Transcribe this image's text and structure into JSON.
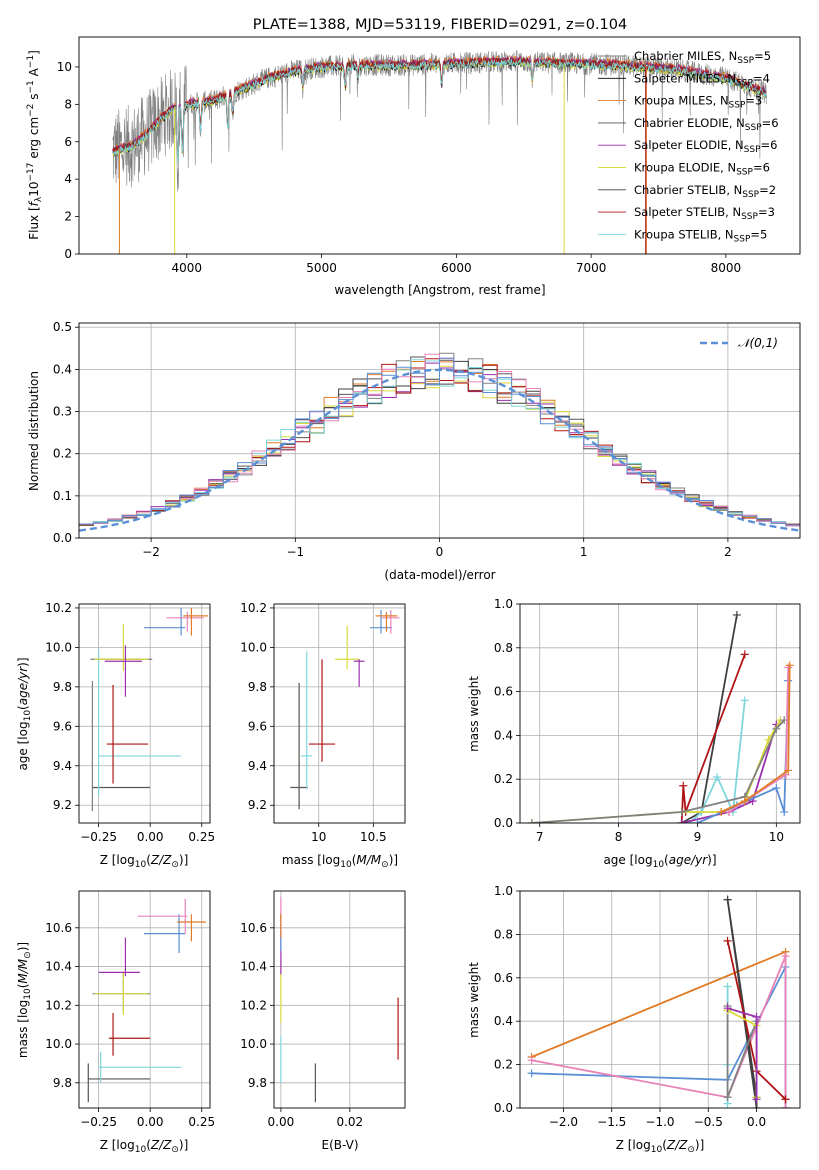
{
  "chart_data": [
    {
      "type": "line",
      "title": "PLATE=1388, MJD=53119, FIBERID=0291, z=0.104",
      "xlabel": "wavelength [Angstrom, rest frame]",
      "ylabel": "Flux [fλ10⁻¹⁷ erg cm⁻² s⁻¹ A⁻¹]",
      "xlim": [
        3200,
        8550
      ],
      "ylim": [
        0,
        11.6
      ],
      "xticks": [
        4000,
        5000,
        6000,
        7000,
        8000
      ],
      "yticks": [
        0,
        2,
        4,
        6,
        8,
        10
      ],
      "legend_position": "right",
      "series": [
        {
          "name": "Chabrier MILES, N_SSP=5",
          "color": "#808080"
        },
        {
          "name": "Salpeter MILES, N_SSP=4",
          "color": "#000000"
        },
        {
          "name": "Kroupa MILES, N_SSP=3",
          "color": "#e07b26"
        },
        {
          "name": "Chabrier ELODIE, N_SSP=6",
          "color": "#555555"
        },
        {
          "name": "Salpeter ELODIE, N_SSP=6",
          "color": "#9b2fae"
        },
        {
          "name": "Kroupa ELODIE, N_SSP=6",
          "color": "#d9d93a"
        },
        {
          "name": "Chabrier STELIB, N_SSP=2",
          "color": "#404040"
        },
        {
          "name": "Salpeter STELIB, N_SSP=3",
          "color": "#b01515"
        },
        {
          "name": "Kroupa STELIB, N_SSP=5",
          "color": "#7ed6dc"
        }
      ],
      "continuum": {
        "x": [
          3450,
          3600,
          3700,
          3800,
          3900,
          4000,
          4200,
          4400,
          4600,
          4800,
          5000,
          5300,
          5600,
          6000,
          6400,
          6800,
          7200,
          7600,
          8000,
          8300
        ],
        "y": [
          5.5,
          5.8,
          6.4,
          7.2,
          7.8,
          8.0,
          8.2,
          8.8,
          9.4,
          9.8,
          10.0,
          10.1,
          10.1,
          10.2,
          10.3,
          10.2,
          10.1,
          9.9,
          9.4,
          8.6
        ]
      }
    },
    {
      "type": "step",
      "xlabel": "(data-model)/error",
      "ylabel": "Normed distribution",
      "xlim": [
        -2.5,
        2.5
      ],
      "ylim": [
        0,
        0.51
      ],
      "xticks": [
        -2,
        -1,
        0,
        1,
        2
      ],
      "yticks": [
        0.0,
        0.1,
        0.2,
        0.3,
        0.4,
        0.5
      ],
      "legend_label": "𝒩(0,1)",
      "gaussian": {
        "mu": 0,
        "sigma": 1,
        "color": "#5b8fd6"
      },
      "bin_width": 0.1,
      "colors": [
        "#808080",
        "#e07b26",
        "#555555",
        "#9b2fae",
        "#d9d93a",
        "#404040",
        "#b01515",
        "#7ed6dc",
        "#e882b8",
        "#5b8fd6"
      ]
    },
    {
      "type": "errorbar",
      "xlabel": "Z [log₁₀(Z/Z⊙)]",
      "ylabel": "age  [log₁₀(age/yr)]",
      "xlim": [
        -0.345,
        0.29
      ],
      "ylim": [
        9.11,
        10.22
      ],
      "xticks": [
        -0.25,
        0.0,
        0.25
      ],
      "xticklabels": [
        "−0.25",
        "0.00",
        "0.25"
      ],
      "yticks": [
        9.2,
        9.4,
        9.6,
        9.8,
        10.0,
        10.2
      ],
      "points": [
        {
          "x": -0.28,
          "xerr": 0.0,
          "y": 9.5,
          "yerr": 0.33,
          "color": "#808080"
        },
        {
          "x": -0.14,
          "xerr": 0.14,
          "y": 9.29,
          "yerr": 0.0,
          "color": "#555555"
        },
        {
          "x": -0.28,
          "xerr": 0.0,
          "y": 9.45,
          "yerr": 0.0,
          "color": "#555555"
        },
        {
          "x": -0.25,
          "xerr": 0.0,
          "y": 9.62,
          "yerr": 0.37,
          "color": "#7ed6dc"
        },
        {
          "x": -0.05,
          "xerr": 0.2,
          "y": 9.45,
          "yerr": 0.0,
          "color": "#7ed6dc"
        },
        {
          "x": -0.18,
          "xerr": 0.0,
          "y": 9.56,
          "yerr": 0.25,
          "color": "#b01515"
        },
        {
          "x": -0.11,
          "xerr": 0.1,
          "y": 9.51,
          "yerr": 0.0,
          "color": "#b01515"
        },
        {
          "x": -0.14,
          "xerr": 0.15,
          "y": 9.94,
          "yerr": 0.0,
          "color": "#808080"
        },
        {
          "x": -0.13,
          "xerr": 0.0,
          "y": 10.0,
          "yerr": 0.12,
          "color": "#d9d93a"
        },
        {
          "x": -0.14,
          "xerr": 0.13,
          "y": 9.94,
          "yerr": 0.0,
          "color": "#d9d93a"
        },
        {
          "x": -0.12,
          "xerr": 0.0,
          "y": 9.88,
          "yerr": 0.13,
          "color": "#9b2fae"
        },
        {
          "x": -0.13,
          "xerr": 0.09,
          "y": 9.93,
          "yerr": 0.0,
          "color": "#9b2fae"
        },
        {
          "x": 0.15,
          "xerr": 0.0,
          "y": 10.13,
          "yerr": 0.07,
          "color": "#5b8fd6"
        },
        {
          "x": 0.07,
          "xerr": 0.1,
          "y": 10.1,
          "yerr": 0.0,
          "color": "#5b8fd6"
        },
        {
          "x": 0.18,
          "xerr": 0.0,
          "y": 10.13,
          "yerr": 0.05,
          "color": "#e882b8"
        },
        {
          "x": 0.17,
          "xerr": 0.09,
          "y": 10.15,
          "yerr": 0.0,
          "color": "#e882b8"
        },
        {
          "x": 0.2,
          "xerr": 0.0,
          "y": 10.13,
          "yerr": 0.07,
          "color": "#e07b26"
        },
        {
          "x": 0.22,
          "xerr": 0.06,
          "y": 10.16,
          "yerr": 0.0,
          "color": "#e07b26"
        }
      ]
    },
    {
      "type": "errorbar",
      "xlabel": "mass [log₁₀(M/M⊙)]",
      "xlim": [
        9.59,
        10.79
      ],
      "ylim": [
        9.11,
        10.22
      ],
      "xticks": [
        10.0,
        10.5
      ],
      "yticks": [
        9.2,
        9.4,
        9.6,
        9.8,
        10.0,
        10.2
      ],
      "points": [
        {
          "x": 9.82,
          "xerr": 0.0,
          "y": 9.5,
          "yerr": 0.32,
          "color": "#555555"
        },
        {
          "x": 9.82,
          "xerr": 0.08,
          "y": 9.29,
          "yerr": 0.0,
          "color": "#555555"
        },
        {
          "x": 9.89,
          "xerr": 0.0,
          "y": 9.63,
          "yerr": 0.35,
          "color": "#7ed6dc"
        },
        {
          "x": 9.89,
          "xerr": 0.05,
          "y": 9.45,
          "yerr": 0.0,
          "color": "#7ed6dc"
        },
        {
          "x": 10.03,
          "xerr": 0.0,
          "y": 9.68,
          "yerr": 0.26,
          "color": "#b01515"
        },
        {
          "x": 10.03,
          "xerr": 0.12,
          "y": 9.51,
          "yerr": 0.0,
          "color": "#b01515"
        },
        {
          "x": 10.26,
          "xerr": 0.0,
          "y": 10.0,
          "yerr": 0.11,
          "color": "#d9d93a"
        },
        {
          "x": 10.26,
          "xerr": 0.11,
          "y": 9.94,
          "yerr": 0.0,
          "color": "#d9d93a"
        },
        {
          "x": 10.37,
          "xerr": 0.0,
          "y": 9.87,
          "yerr": 0.07,
          "color": "#9b2fae"
        },
        {
          "x": 10.37,
          "xerr": 0.05,
          "y": 9.93,
          "yerr": 0.0,
          "color": "#9b2fae"
        },
        {
          "x": 10.57,
          "xerr": 0.0,
          "y": 10.13,
          "yerr": 0.06,
          "color": "#5b8fd6"
        },
        {
          "x": 10.57,
          "xerr": 0.1,
          "y": 10.1,
          "yerr": 0.0,
          "color": "#5b8fd6"
        },
        {
          "x": 10.66,
          "xerr": 0.0,
          "y": 10.13,
          "yerr": 0.06,
          "color": "#e882b8"
        },
        {
          "x": 10.66,
          "xerr": 0.08,
          "y": 10.15,
          "yerr": 0.0,
          "color": "#e882b8"
        },
        {
          "x": 10.62,
          "xerr": 0.0,
          "y": 10.13,
          "yerr": 0.05,
          "color": "#e07b26"
        },
        {
          "x": 10.62,
          "xerr": 0.1,
          "y": 10.16,
          "yerr": 0.0,
          "color": "#e07b26"
        }
      ]
    },
    {
      "type": "line",
      "xlabel": "age  [log₁₀(age/yr)]",
      "ylabel": "mass weight",
      "xlim": [
        6.75,
        10.3
      ],
      "ylim": [
        0,
        1.0
      ],
      "xticks": [
        7,
        8,
        9,
        10
      ],
      "yticks": [
        0.0,
        0.2,
        0.4,
        0.6,
        0.8,
        1.0
      ],
      "series": [
        {
          "color": "#404040",
          "x": [
            8.8,
            9.05,
            9.5
          ],
          "y": [
            0.0,
            0.05,
            0.95
          ]
        },
        {
          "color": "#b01515",
          "x": [
            8.8,
            8.82,
            8.85,
            9.6
          ],
          "y": [
            0.0,
            0.17,
            0.05,
            0.77
          ]
        },
        {
          "color": "#7ed6dc",
          "x": [
            8.9,
            9.05,
            9.25,
            9.45,
            9.6
          ],
          "y": [
            0.0,
            0.05,
            0.21,
            0.05,
            0.56
          ]
        },
        {
          "color": "#9b2fae",
          "x": [
            8.8,
            9.4,
            9.7,
            10.0
          ],
          "y": [
            0.0,
            0.05,
            0.1,
            0.45
          ]
        },
        {
          "color": "#d9d93a",
          "x": [
            6.9,
            8.8,
            9.3,
            9.6,
            9.9,
            10.05
          ],
          "y": [
            0.0,
            0.05,
            0.05,
            0.1,
            0.38,
            0.47
          ]
        },
        {
          "color": "#808080",
          "x": [
            6.9,
            8.8,
            9.6,
            10.0,
            10.1
          ],
          "y": [
            0.0,
            0.05,
            0.12,
            0.43,
            0.47
          ]
        },
        {
          "color": "#5b8fd6",
          "x": [
            9.0,
            9.5,
            10.0,
            10.1,
            10.15
          ],
          "y": [
            0.0,
            0.08,
            0.16,
            0.05,
            0.65
          ]
        },
        {
          "color": "#e882b8",
          "x": [
            9.4,
            9.6,
            10.12,
            10.15
          ],
          "y": [
            0.05,
            0.1,
            0.22,
            0.71
          ]
        },
        {
          "color": "#e07b26",
          "x": [
            9.3,
            9.6,
            10.15,
            10.17
          ],
          "y": [
            0.05,
            0.1,
            0.24,
            0.72
          ]
        }
      ]
    },
    {
      "type": "errorbar",
      "xlabel": "Z [log₁₀(Z/Z⊙)]",
      "ylabel": "mass [log₁₀(M/M⊙)]",
      "xlim": [
        -0.345,
        0.29
      ],
      "ylim": [
        9.67,
        10.79
      ],
      "xticks": [
        -0.25,
        0.0,
        0.25
      ],
      "xticklabels": [
        "−0.25",
        "0.00",
        "0.25"
      ],
      "yticks": [
        9.8,
        10.0,
        10.2,
        10.4,
        10.6
      ],
      "points": [
        {
          "x": -0.3,
          "xerr": 0.0,
          "y": 9.8,
          "yerr": 0.1,
          "color": "#555555"
        },
        {
          "x": -0.15,
          "xerr": 0.15,
          "y": 9.82,
          "yerr": 0.0,
          "color": "#555555"
        },
        {
          "x": -0.24,
          "xerr": 0.0,
          "y": 9.88,
          "yerr": 0.08,
          "color": "#7ed6dc"
        },
        {
          "x": -0.05,
          "xerr": 0.2,
          "y": 9.88,
          "yerr": 0.0,
          "color": "#7ed6dc"
        },
        {
          "x": -0.18,
          "xerr": 0.0,
          "y": 10.05,
          "yerr": 0.11,
          "color": "#b01515"
        },
        {
          "x": -0.1,
          "xerr": 0.1,
          "y": 10.03,
          "yerr": 0.0,
          "color": "#b01515"
        },
        {
          "x": -0.13,
          "xerr": 0.0,
          "y": 10.27,
          "yerr": 0.1,
          "color": "#808080"
        },
        {
          "x": -0.14,
          "xerr": 0.14,
          "y": 10.26,
          "yerr": 0.0,
          "color": "#808080"
        },
        {
          "x": -0.13,
          "xerr": 0.0,
          "y": 10.26,
          "yerr": 0.11,
          "color": "#d9d93a"
        },
        {
          "x": -0.14,
          "xerr": 0.13,
          "y": 10.26,
          "yerr": 0.0,
          "color": "#d9d93a"
        },
        {
          "x": -0.12,
          "xerr": 0.0,
          "y": 10.45,
          "yerr": 0.1,
          "color": "#9b2fae"
        },
        {
          "x": -0.15,
          "xerr": 0.1,
          "y": 10.37,
          "yerr": 0.0,
          "color": "#9b2fae"
        },
        {
          "x": 0.14,
          "xerr": 0.0,
          "y": 10.57,
          "yerr": 0.1,
          "color": "#5b8fd6"
        },
        {
          "x": 0.07,
          "xerr": 0.1,
          "y": 10.57,
          "yerr": 0.0,
          "color": "#5b8fd6"
        },
        {
          "x": 0.17,
          "xerr": 0.0,
          "y": 10.66,
          "yerr": 0.09,
          "color": "#e882b8"
        },
        {
          "x": 0.06,
          "xerr": 0.12,
          "y": 10.66,
          "yerr": 0.0,
          "color": "#e882b8"
        },
        {
          "x": 0.2,
          "xerr": 0.0,
          "y": 10.6,
          "yerr": 0.07,
          "color": "#e07b26"
        },
        {
          "x": 0.2,
          "xerr": 0.07,
          "y": 10.63,
          "yerr": 0.0,
          "color": "#e07b26"
        }
      ]
    },
    {
      "type": "errorbar",
      "xlabel": "E(B-V)",
      "xlim": [
        -0.002,
        0.036
      ],
      "ylim": [
        9.67,
        10.79
      ],
      "xticks": [
        0.0,
        0.02
      ],
      "xticklabels": [
        "0.00",
        "0.02"
      ],
      "yticks": [
        9.8,
        10.0,
        10.2,
        10.4,
        10.6
      ],
      "points": [
        {
          "x": 0.01,
          "xerr": 0.0,
          "y": 9.8,
          "yerr": 0.1,
          "color": "#555555"
        },
        {
          "x": 0.0,
          "xerr": 0.0,
          "y": 9.92,
          "yerr": 0.12,
          "color": "#7ed6dc"
        },
        {
          "x": 0.0,
          "xerr": 0.0,
          "y": 10.27,
          "yerr": 0.16,
          "color": "#d9d93a"
        },
        {
          "x": 0.0,
          "xerr": 0.0,
          "y": 10.46,
          "yerr": 0.1,
          "color": "#9b2fae"
        },
        {
          "x": 0.0,
          "xerr": 0.0,
          "y": 10.58,
          "yerr": 0.1,
          "color": "#5b8fd6"
        },
        {
          "x": 0.0,
          "xerr": 0.0,
          "y": 10.66,
          "yerr": 0.1,
          "color": "#e882b8"
        },
        {
          "x": 0.0,
          "xerr": 0.0,
          "y": 10.61,
          "yerr": 0.06,
          "color": "#e07b26"
        },
        {
          "x": 0.034,
          "xerr": 0.0,
          "y": 10.08,
          "yerr": 0.16,
          "color": "#b01515"
        }
      ]
    },
    {
      "type": "line",
      "xlabel": "Z [log₁₀(Z/Z⊙)]",
      "ylabel": "mass weight",
      "xlim": [
        -2.45,
        0.45
      ],
      "ylim": [
        0,
        1.0
      ],
      "xticks": [
        -2.0,
        -1.5,
        -1.0,
        -0.5,
        0.0
      ],
      "xticklabels": [
        "−2.0",
        "−1.5",
        "−1.0",
        "−0.5",
        "0.0"
      ],
      "yticks": [
        0.0,
        0.2,
        0.4,
        0.6,
        0.8,
        1.0
      ],
      "series": [
        {
          "color": "#e07b26",
          "x": [
            -2.33,
            0.3,
            0.3
          ],
          "y": [
            0.235,
            0.72,
            0.0
          ]
        },
        {
          "color": "#5b8fd6",
          "x": [
            -2.33,
            -0.3,
            0.3,
            0.3
          ],
          "y": [
            0.16,
            0.13,
            0.65,
            0.0
          ]
        },
        {
          "color": "#e882b8",
          "x": [
            -2.33,
            -0.3,
            0.3,
            0.3
          ],
          "y": [
            0.22,
            0.05,
            0.7,
            0.0
          ]
        },
        {
          "color": "#404040",
          "x": [
            -0.3,
            0.0,
            0.0,
            -0.3
          ],
          "y": [
            0.96,
            0.05,
            0.0,
            0.96
          ]
        },
        {
          "color": "#b01515",
          "x": [
            -0.3,
            0.0,
            0.3,
            0.3
          ],
          "y": [
            0.77,
            0.17,
            0.04,
            0.04
          ]
        },
        {
          "color": "#7ed6dc",
          "x": [
            -0.3,
            -0.3,
            -0.3
          ],
          "y": [
            0.56,
            0.2,
            0.02
          ]
        },
        {
          "color": "#808080",
          "x": [
            -0.3,
            -0.3,
            0.0,
            0.0
          ],
          "y": [
            0.47,
            0.05,
            0.4,
            0.05
          ]
        },
        {
          "color": "#d9d93a",
          "x": [
            -0.3,
            0.0,
            0.0
          ],
          "y": [
            0.45,
            0.38,
            0.05
          ]
        },
        {
          "color": "#9b2fae",
          "x": [
            -0.3,
            0.0,
            0.0
          ],
          "y": [
            0.46,
            0.42,
            0.04
          ]
        }
      ]
    }
  ]
}
